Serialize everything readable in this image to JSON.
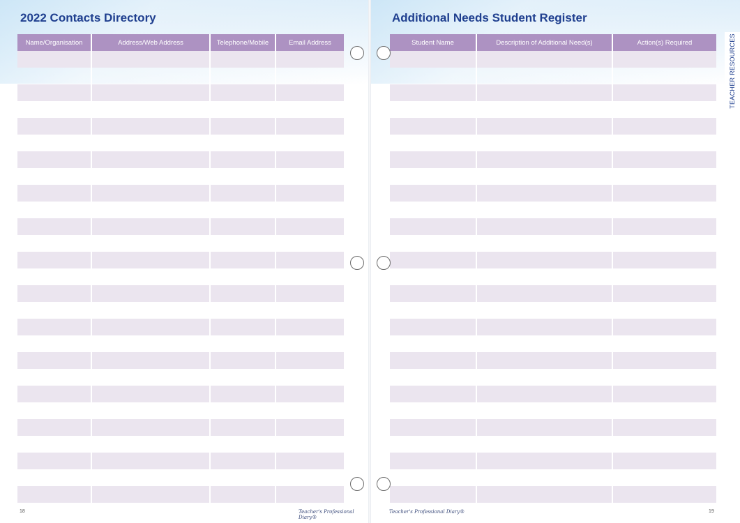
{
  "left_page": {
    "title": "2022 Contacts Directory",
    "columns": [
      "Name/Organisation",
      "Address/Web Address",
      "Telephone/Mobile",
      "Email Address"
    ],
    "page_number": "18",
    "footer_brand": "Teacher's Professional Diary®"
  },
  "right_page": {
    "title": "Additional Needs Student Register",
    "columns": [
      "Student Name",
      "Description of Additional Need(s)",
      "Action(s) Required"
    ],
    "page_number": "19",
    "footer_brand": "Teacher's Professional Diary®",
    "side_tab": "TEACHER RESOURCES"
  },
  "colors": {
    "title": "#1f3f8f",
    "header_fill": "#ad92c2",
    "row_fill": "#ebe5ef"
  }
}
